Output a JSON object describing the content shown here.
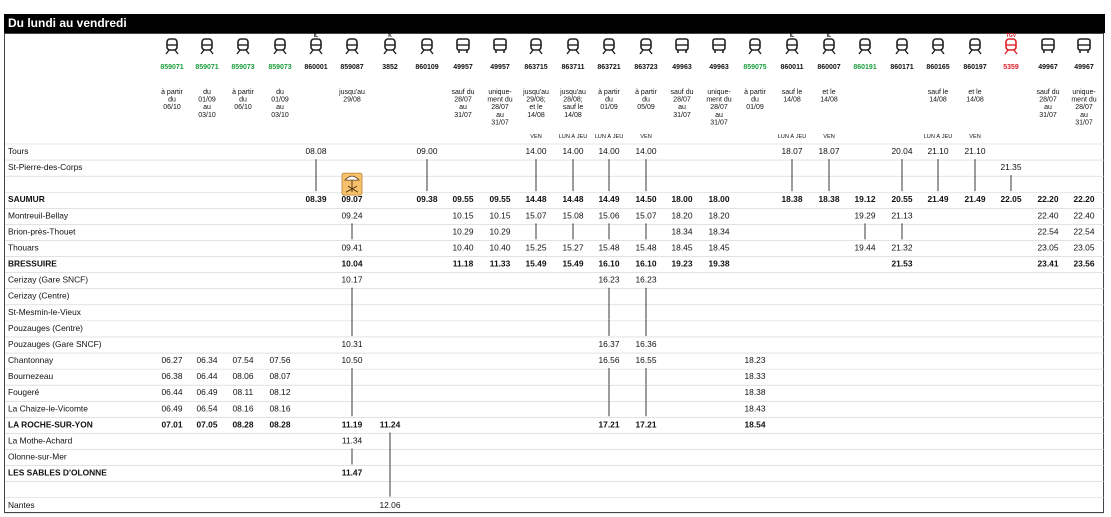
{
  "header": {
    "title": "Du lundi au vendredi"
  },
  "columns": [
    {
      "number": "859071",
      "kind": "train",
      "color": "#1a9e3c",
      "badge": "",
      "note": [
        "à partir",
        "du",
        "06/10"
      ],
      "day": ""
    },
    {
      "number": "859071",
      "kind": "train",
      "color": "#1a9e3c",
      "badge": "",
      "note": [
        "du",
        "01/09",
        "au",
        "03/10"
      ],
      "day": ""
    },
    {
      "number": "859073",
      "kind": "train",
      "color": "#1a9e3c",
      "badge": "",
      "note": [
        "à partir",
        "du",
        "06/10"
      ],
      "day": ""
    },
    {
      "number": "859073",
      "kind": "train",
      "color": "#1a9e3c",
      "badge": "",
      "note": [
        "du",
        "01/09",
        "au",
        "03/10"
      ],
      "day": ""
    },
    {
      "number": "860001",
      "kind": "train",
      "color": "#111111",
      "badge": "IL",
      "note": [],
      "day": ""
    },
    {
      "number": "859087",
      "kind": "train",
      "color": "#111111",
      "badge": "",
      "note": [
        "jusqu'au",
        "29/08"
      ],
      "day": ""
    },
    {
      "number": "3852",
      "kind": "train",
      "color": "#111111",
      "badge": "K",
      "note": [],
      "day": ""
    },
    {
      "number": "860109",
      "kind": "train",
      "color": "#111111",
      "badge": "",
      "note": [],
      "day": ""
    },
    {
      "number": "49957",
      "kind": "bus",
      "color": "#111111",
      "badge": "",
      "note": [
        "sauf du",
        "28/07",
        "au",
        "31/07"
      ],
      "day": ""
    },
    {
      "number": "49957",
      "kind": "bus",
      "color": "#111111",
      "badge": "",
      "note": [
        "unique-",
        "ment du",
        "28/07",
        "au",
        "31/07"
      ],
      "day": ""
    },
    {
      "number": "863715",
      "kind": "train",
      "color": "#111111",
      "badge": "",
      "note": [
        "jusqu'au",
        "29/08;",
        "et le",
        "14/08"
      ],
      "day": "VEN"
    },
    {
      "number": "863711",
      "kind": "train",
      "color": "#111111",
      "badge": "",
      "note": [
        "jusqu'au",
        "28/08;",
        "sauf le",
        "14/08"
      ],
      "day": "LUN À JEU"
    },
    {
      "number": "863721",
      "kind": "train",
      "color": "#111111",
      "badge": "",
      "note": [
        "à partir",
        "du",
        "01/09"
      ],
      "day": "LUN À JEU"
    },
    {
      "number": "863723",
      "kind": "train",
      "color": "#111111",
      "badge": "",
      "note": [
        "à partir",
        "du",
        "05/09"
      ],
      "day": "VEN"
    },
    {
      "number": "49963",
      "kind": "bus",
      "color": "#111111",
      "badge": "",
      "note": [
        "sauf du",
        "28/07",
        "au",
        "31/07"
      ],
      "day": ""
    },
    {
      "number": "49963",
      "kind": "bus",
      "color": "#111111",
      "badge": "",
      "note": [
        "unique-",
        "ment du",
        "28/07",
        "au",
        "31/07"
      ],
      "day": ""
    },
    {
      "number": "859075",
      "kind": "train",
      "color": "#1a9e3c",
      "badge": "",
      "note": [
        "à partir",
        "du",
        "01/09"
      ],
      "day": ""
    },
    {
      "number": "860011",
      "kind": "train",
      "color": "#111111",
      "badge": "IL",
      "note": [
        "sauf le",
        "14/08"
      ],
      "day": "LUN À JEU"
    },
    {
      "number": "860007",
      "kind": "train",
      "color": "#111111",
      "badge": "IL",
      "note": [
        "et le",
        "14/08"
      ],
      "day": "VEN"
    },
    {
      "number": "860191",
      "kind": "train",
      "color": "#1a9e3c",
      "badge": "",
      "note": [],
      "day": ""
    },
    {
      "number": "860171",
      "kind": "train",
      "color": "#111111",
      "badge": "",
      "note": [],
      "day": ""
    },
    {
      "number": "860165",
      "kind": "train",
      "color": "#111111",
      "badge": "",
      "note": [
        "sauf le",
        "14/08"
      ],
      "day": "LUN À JEU"
    },
    {
      "number": "860197",
      "kind": "train",
      "color": "#111111",
      "badge": "",
      "note": [
        "et le",
        "14/08"
      ],
      "day": "VEN"
    },
    {
      "number": "5359",
      "kind": "train",
      "color": "#e0202a",
      "badge": "TGV",
      "note": [],
      "day": ""
    },
    {
      "number": "49967",
      "kind": "bus",
      "color": "#111111",
      "badge": "",
      "note": [
        "sauf du",
        "28/07",
        "au",
        "31/07"
      ],
      "day": ""
    },
    {
      "number": "49967",
      "kind": "bus",
      "color": "#111111",
      "badge": "",
      "note": [
        "unique-",
        "ment du",
        "28/07",
        "au",
        "31/07"
      ],
      "day": ""
    }
  ],
  "stations": [
    {
      "name": "Tours",
      "bold": false
    },
    {
      "name": "St-Pierre-des-Corps",
      "bold": false
    },
    {
      "name": "",
      "bold": false
    },
    {
      "name": "SAUMUR",
      "bold": true
    },
    {
      "name": "Montreuil-Bellay",
      "bold": false
    },
    {
      "name": "Brion-près-Thouet",
      "bold": false
    },
    {
      "name": "Thouars",
      "bold": false
    },
    {
      "name": "BRESSUIRE",
      "bold": true
    },
    {
      "name": "Cerizay (Gare SNCF)",
      "bold": false
    },
    {
      "name": "Cerizay (Centre)",
      "bold": false
    },
    {
      "name": "St-Mesmin-le-Vieux",
      "bold": false
    },
    {
      "name": "Pouzauges (Centre)",
      "bold": false
    },
    {
      "name": "Pouzauges (Gare SNCF)",
      "bold": false
    },
    {
      "name": "Chantonnay",
      "bold": false
    },
    {
      "name": "Bournezeau",
      "bold": false
    },
    {
      "name": "Fougeré",
      "bold": false
    },
    {
      "name": "La Chaize-le-Vicomte",
      "bold": false
    },
    {
      "name": "LA ROCHE-SUR-YON",
      "bold": true
    },
    {
      "name": "La Mothe-Achard",
      "bold": false
    },
    {
      "name": "Olonne-sur-Mer",
      "bold": false
    },
    {
      "name": "LES SABLES D'OLONNE",
      "bold": true
    },
    {
      "name": "",
      "bold": false
    },
    {
      "name": "Nantes",
      "bold": false
    }
  ],
  "times": [
    [
      null,
      null,
      null,
      null,
      "08.08",
      null,
      null,
      "09.00",
      null,
      null,
      "14.00",
      "14.00",
      "14.00",
      "14.00",
      null,
      null,
      null,
      "18.07",
      "18.07",
      null,
      "20.04",
      "21.10",
      "21.10",
      null,
      null,
      null
    ],
    [
      null,
      null,
      null,
      null,
      "|",
      null,
      null,
      "|",
      null,
      null,
      "|",
      "|",
      "|",
      "|",
      null,
      null,
      null,
      "|",
      "|",
      null,
      "|",
      "|",
      "|",
      "21.35",
      null,
      null
    ],
    [
      null,
      null,
      null,
      null,
      "|",
      "beach",
      null,
      "|",
      null,
      null,
      "|",
      "|",
      "|",
      "|",
      null,
      null,
      null,
      "|",
      "|",
      null,
      "|",
      "|",
      "|",
      "|",
      null,
      null
    ],
    [
      null,
      null,
      null,
      null,
      "08.39",
      "09.07",
      null,
      "09.38",
      "09.55",
      "09.55",
      "14.48",
      "14.48",
      "14.49",
      "14.50",
      "18.00",
      "18.00",
      null,
      "18.38",
      "18.38",
      "19.12",
      "20.55",
      "21.49",
      "21.49",
      "22.05",
      "22.20",
      "22.20"
    ],
    [
      null,
      null,
      null,
      null,
      null,
      "09.24",
      null,
      null,
      "10.15",
      "10.15",
      "15.07",
      "15.08",
      "15.06",
      "15.07",
      "18.20",
      "18.20",
      null,
      null,
      null,
      "19.29",
      "21.13",
      null,
      null,
      null,
      "22.40",
      "22.40"
    ],
    [
      null,
      null,
      null,
      null,
      null,
      "|",
      null,
      null,
      "10.29",
      "10.29",
      "|",
      "|",
      "|",
      "|",
      "18.34",
      "18.34",
      null,
      null,
      null,
      "|",
      "|",
      null,
      null,
      null,
      "22.54",
      "22.54"
    ],
    [
      null,
      null,
      null,
      null,
      null,
      "09.41",
      null,
      null,
      "10.40",
      "10.40",
      "15.25",
      "15.27",
      "15.48",
      "15.48",
      "18.45",
      "18.45",
      null,
      null,
      null,
      "19.44",
      "21.32",
      null,
      null,
      null,
      "23.05",
      "23.05"
    ],
    [
      null,
      null,
      null,
      null,
      null,
      "10.04",
      null,
      null,
      "11.18",
      "11.33",
      "15.49",
      "15.49",
      "16.10",
      "16.10",
      "19.23",
      "19.38",
      null,
      null,
      null,
      null,
      "21.53",
      null,
      null,
      null,
      "23.41",
      "23.56"
    ],
    [
      null,
      null,
      null,
      null,
      null,
      "10.17",
      null,
      null,
      null,
      null,
      null,
      null,
      "16.23",
      "16.23",
      null,
      null,
      null,
      null,
      null,
      null,
      null,
      null,
      null,
      null,
      null,
      null
    ],
    [
      null,
      null,
      null,
      null,
      null,
      "|",
      null,
      null,
      null,
      null,
      null,
      null,
      "|",
      "|",
      null,
      null,
      null,
      null,
      null,
      null,
      null,
      null,
      null,
      null,
      null,
      null
    ],
    [
      null,
      null,
      null,
      null,
      null,
      "|",
      null,
      null,
      null,
      null,
      null,
      null,
      "|",
      "|",
      null,
      null,
      null,
      null,
      null,
      null,
      null,
      null,
      null,
      null,
      null,
      null
    ],
    [
      null,
      null,
      null,
      null,
      null,
      "|",
      null,
      null,
      null,
      null,
      null,
      null,
      "|",
      "|",
      null,
      null,
      null,
      null,
      null,
      null,
      null,
      null,
      null,
      null,
      null,
      null
    ],
    [
      null,
      null,
      null,
      null,
      null,
      "10.31",
      null,
      null,
      null,
      null,
      null,
      null,
      "16.37",
      "16.36",
      null,
      null,
      null,
      null,
      null,
      null,
      null,
      null,
      null,
      null,
      null,
      null
    ],
    [
      "06.27",
      "06.34",
      "07.54",
      "07.56",
      null,
      "10.50",
      null,
      null,
      null,
      null,
      null,
      null,
      "16.56",
      "16.55",
      null,
      null,
      "18.23",
      null,
      null,
      null,
      null,
      null,
      null,
      null,
      null,
      null
    ],
    [
      "06.38",
      "06.44",
      "08.06",
      "08.07",
      null,
      "|",
      null,
      null,
      null,
      null,
      null,
      null,
      "|",
      "|",
      null,
      null,
      "18.33",
      null,
      null,
      null,
      null,
      null,
      null,
      null,
      null,
      null
    ],
    [
      "06.44",
      "06.49",
      "08.11",
      "08.12",
      null,
      "|",
      null,
      null,
      null,
      null,
      null,
      null,
      "|",
      "|",
      null,
      null,
      "18.38",
      null,
      null,
      null,
      null,
      null,
      null,
      null,
      null,
      null
    ],
    [
      "06.49",
      "06.54",
      "08.16",
      "08.16",
      null,
      "|",
      null,
      null,
      null,
      null,
      null,
      null,
      "|",
      "|",
      null,
      null,
      "18.43",
      null,
      null,
      null,
      null,
      null,
      null,
      null,
      null,
      null
    ],
    [
      "07.01",
      "07.05",
      "08.28",
      "08.28",
      null,
      "11.19",
      "11.24",
      null,
      null,
      null,
      null,
      null,
      "17.21",
      "17.21",
      null,
      null,
      "18.54",
      null,
      null,
      null,
      null,
      null,
      null,
      null,
      null,
      null
    ],
    [
      null,
      null,
      null,
      null,
      null,
      "11.34",
      "|",
      null,
      null,
      null,
      null,
      null,
      null,
      null,
      null,
      null,
      null,
      null,
      null,
      null,
      null,
      null,
      null,
      null,
      null,
      null
    ],
    [
      null,
      null,
      null,
      null,
      null,
      "|",
      "|",
      null,
      null,
      null,
      null,
      null,
      null,
      null,
      null,
      null,
      null,
      null,
      null,
      null,
      null,
      null,
      null,
      null,
      null,
      null
    ],
    [
      null,
      null,
      null,
      null,
      null,
      "11.47",
      "|",
      null,
      null,
      null,
      null,
      null,
      null,
      null,
      null,
      null,
      null,
      null,
      null,
      null,
      null,
      null,
      null,
      null,
      null,
      null
    ],
    [
      null,
      null,
      null,
      null,
      null,
      null,
      "|",
      null,
      null,
      null,
      null,
      null,
      null,
      null,
      null,
      null,
      null,
      null,
      null,
      null,
      null,
      null,
      null,
      null,
      null,
      null
    ],
    [
      null,
      null,
      null,
      null,
      null,
      null,
      "12.06",
      null,
      null,
      null,
      null,
      null,
      null,
      null,
      null,
      null,
      null,
      null,
      null,
      null,
      null,
      null,
      null,
      null,
      null,
      null
    ]
  ],
  "colors": {
    "header_bg": "#000000",
    "regional_green": "#1a9e3c",
    "tgv_red": "#e0202a",
    "beach_icon_bg": "#f5c26b"
  },
  "icons": {
    "train": "train-icon",
    "bus": "bus-icon",
    "beach": "beach-icon"
  }
}
